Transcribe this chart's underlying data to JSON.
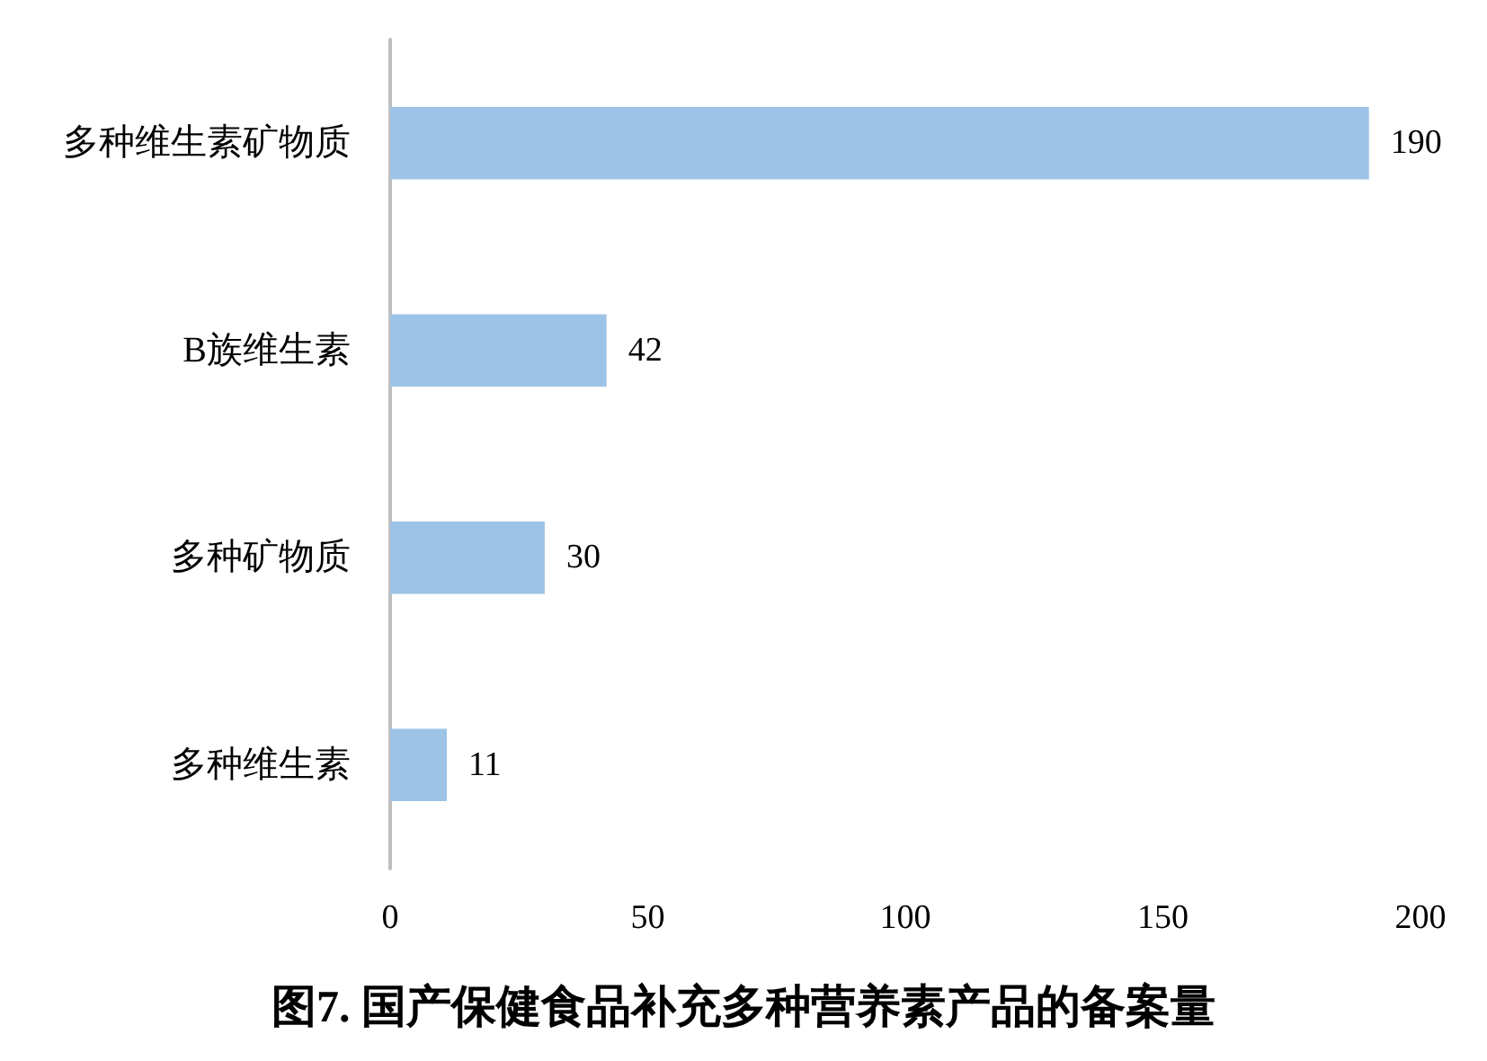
{
  "chart_data": {
    "type": "bar",
    "orientation": "horizontal",
    "title": "图7. 国产保健食品补充多种营养素产品的备案量",
    "categories": [
      "多种维生素矿物质",
      "B族维生素",
      "多种矿物质",
      "多种维生素"
    ],
    "values": [
      190,
      42,
      30,
      11
    ],
    "color": "#9dc3e6",
    "xlim": [
      0,
      200
    ],
    "xticks": [
      0,
      50,
      100,
      150,
      200
    ],
    "grid": false,
    "data_labels": true
  }
}
